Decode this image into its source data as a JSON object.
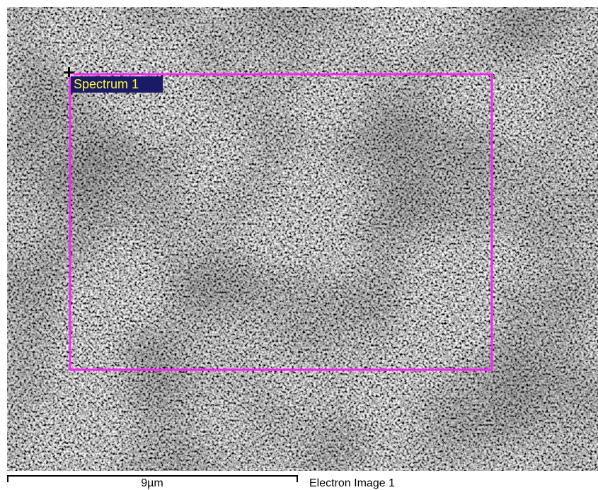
{
  "region": {
    "label": "Spectrum 1"
  },
  "scale_bar": {
    "label": "9µm"
  },
  "caption": "Electron Image 1"
}
